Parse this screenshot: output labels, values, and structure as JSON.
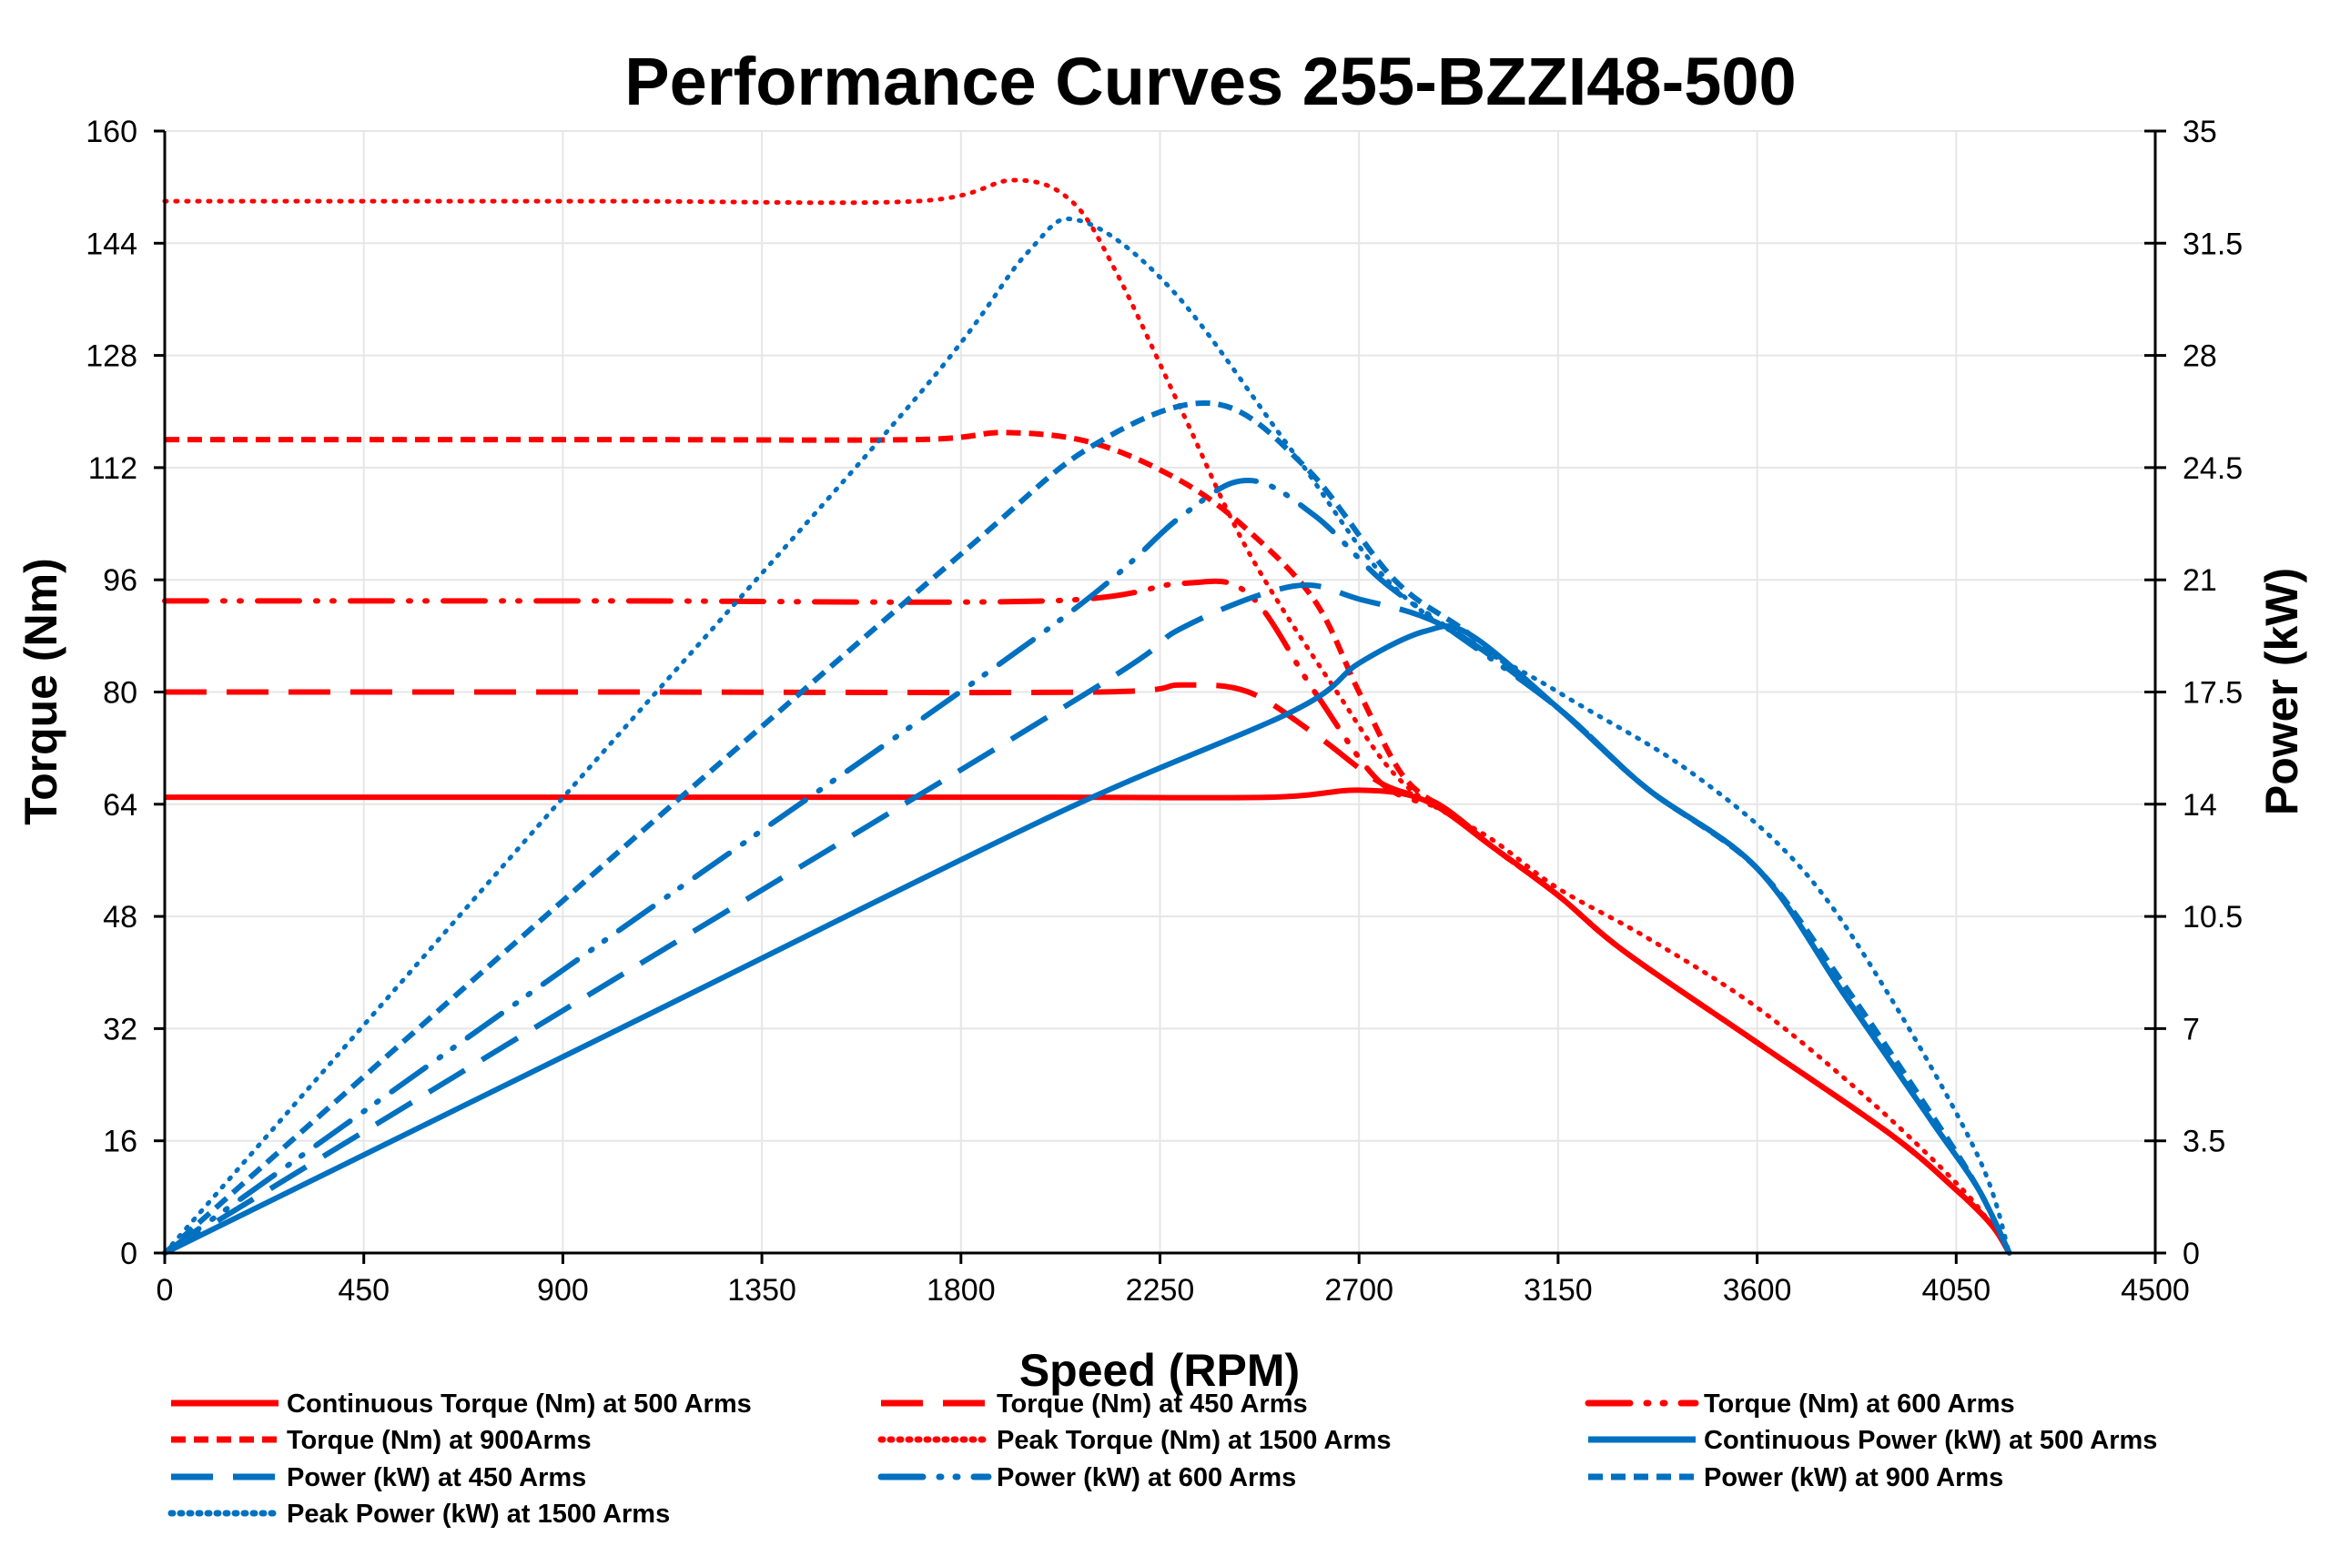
{
  "chart_data": {
    "type": "line",
    "title": "Performance Curves 255-BZZI48-500",
    "xlabel": "Speed (RPM)",
    "ylabel": "Torque (Nm)",
    "y2label": "Power (kW)",
    "xlim": [
      0,
      4500
    ],
    "ylim": [
      0,
      160
    ],
    "y2lim": [
      0,
      35
    ],
    "xticks": [
      "0",
      "450",
      "900",
      "1350",
      "1800",
      "2250",
      "2700",
      "3150",
      "3600",
      "4050",
      "4500"
    ],
    "yticks": [
      "0",
      "16",
      "32",
      "48",
      "64",
      "80",
      "96",
      "112",
      "128",
      "144",
      "160"
    ],
    "y2ticks": [
      "0",
      "3.5",
      "7",
      "10.5",
      "14",
      "17.5",
      "21",
      "24.5",
      "28",
      "31.5",
      "35"
    ],
    "grid": true,
    "legend_position": "bottom",
    "colors": {
      "torque": "#ff0000",
      "power": "#0070c0"
    },
    "series": [
      {
        "name": "Continuous Torque (Nm) at 500 Arms",
        "axis": "left",
        "color": "#ff0000",
        "style": "solid",
        "points": [
          [
            0,
            65
          ],
          [
            1000,
            65
          ],
          [
            2000,
            65
          ],
          [
            2500,
            65
          ],
          [
            2700,
            66
          ],
          [
            2850,
            64.5
          ],
          [
            3000,
            58
          ],
          [
            3150,
            51
          ],
          [
            3300,
            43
          ],
          [
            3600,
            30
          ],
          [
            3900,
            17
          ],
          [
            4050,
            9
          ],
          [
            4130,
            4
          ],
          [
            4170,
            0
          ]
        ]
      },
      {
        "name": "Torque (Nm) at 450 Arms",
        "axis": "left",
        "color": "#ff0000",
        "style": "longdash",
        "points": [
          [
            0,
            80
          ],
          [
            1000,
            80
          ],
          [
            2100,
            80
          ],
          [
            2300,
            81
          ],
          [
            2450,
            80
          ],
          [
            2600,
            74
          ],
          [
            2750,
            67
          ],
          [
            2880,
            64
          ],
          [
            3000,
            58
          ],
          [
            3150,
            51
          ],
          [
            3300,
            43
          ],
          [
            3600,
            30
          ],
          [
            3900,
            17
          ],
          [
            4050,
            9
          ],
          [
            4130,
            4
          ],
          [
            4170,
            0
          ]
        ]
      },
      {
        "name": "Torque (Nm) at 600 Arms",
        "axis": "left",
        "color": "#ff0000",
        "style": "dashdotdot",
        "points": [
          [
            0,
            93
          ],
          [
            1000,
            93
          ],
          [
            2000,
            93
          ],
          [
            2300,
            95.5
          ],
          [
            2450,
            94
          ],
          [
            2600,
            80
          ],
          [
            2750,
            67
          ],
          [
            2900,
            63
          ],
          [
            3000,
            58
          ],
          [
            3150,
            51
          ],
          [
            3300,
            43
          ],
          [
            3600,
            30
          ],
          [
            3900,
            17
          ],
          [
            4050,
            9
          ],
          [
            4130,
            4
          ],
          [
            4170,
            0
          ]
        ]
      },
      {
        "name": "Torque (Nm) at 900Arms",
        "axis": "left",
        "color": "#ff0000",
        "style": "shortdash",
        "points": [
          [
            0,
            116
          ],
          [
            1000,
            116
          ],
          [
            1700,
            116
          ],
          [
            1900,
            117
          ],
          [
            2100,
            115.5
          ],
          [
            2300,
            110
          ],
          [
            2450,
            103
          ],
          [
            2600,
            93
          ],
          [
            2700,
            80
          ],
          [
            2800,
            68
          ],
          [
            2900,
            63
          ],
          [
            3000,
            58
          ],
          [
            3150,
            51
          ],
          [
            3300,
            43
          ],
          [
            3600,
            30
          ],
          [
            3900,
            17
          ],
          [
            4050,
            9
          ],
          [
            4130,
            4
          ],
          [
            4170,
            0
          ]
        ]
      },
      {
        "name": "Peak Torque (Nm) at 1500  Arms",
        "axis": "left",
        "color": "#ff0000",
        "style": "dotted",
        "points": [
          [
            0,
            150
          ],
          [
            1000,
            150
          ],
          [
            1700,
            150
          ],
          [
            1920,
            153
          ],
          [
            2050,
            150
          ],
          [
            2150,
            140
          ],
          [
            2300,
            120
          ],
          [
            2450,
            100
          ],
          [
            2650,
            80
          ],
          [
            2800,
            67
          ],
          [
            3000,
            59
          ],
          [
            3150,
            52
          ],
          [
            3350,
            45
          ],
          [
            3600,
            35
          ],
          [
            3850,
            22
          ],
          [
            4050,
            10
          ],
          [
            4130,
            4
          ],
          [
            4170,
            0
          ]
        ]
      },
      {
        "name": "Continuous Power (kW) at 500 Arms",
        "axis": "right",
        "color": "#0070c0",
        "style": "solid",
        "points": [
          [
            0,
            0
          ],
          [
            1000,
            6.8
          ],
          [
            2000,
            13.6
          ],
          [
            2550,
            16.9
          ],
          [
            2700,
            18.4
          ],
          [
            2850,
            19.4
          ],
          [
            2950,
            19.3
          ],
          [
            3150,
            17
          ],
          [
            3350,
            14.5
          ],
          [
            3600,
            12
          ],
          [
            3800,
            8
          ],
          [
            4000,
            4
          ],
          [
            4100,
            2
          ],
          [
            4170,
            0
          ]
        ]
      },
      {
        "name": "Power (kW) at 450 Arms",
        "axis": "right",
        "color": "#0070c0",
        "style": "longdash",
        "points": [
          [
            0,
            0
          ],
          [
            1000,
            8.4
          ],
          [
            2100,
            17.6
          ],
          [
            2300,
            19.5
          ],
          [
            2550,
            20.8
          ],
          [
            2700,
            20.4
          ],
          [
            2900,
            19.5
          ],
          [
            3150,
            17
          ],
          [
            3350,
            14.5
          ],
          [
            3600,
            12
          ],
          [
            3800,
            8
          ],
          [
            4000,
            4
          ],
          [
            4100,
            2
          ],
          [
            4170,
            0
          ]
        ]
      },
      {
        "name": "Power (kW) at 600 Arms",
        "axis": "right",
        "color": "#0070c0",
        "style": "dashdotdot",
        "points": [
          [
            0,
            0
          ],
          [
            1000,
            9.8
          ],
          [
            2000,
            19.5
          ],
          [
            2300,
            23
          ],
          [
            2450,
            24.1
          ],
          [
            2600,
            23
          ],
          [
            2750,
            21
          ],
          [
            2900,
            19.5
          ],
          [
            3150,
            17
          ],
          [
            3350,
            14.5
          ],
          [
            3600,
            12
          ],
          [
            3800,
            8
          ],
          [
            4000,
            4
          ],
          [
            4100,
            2
          ],
          [
            4170,
            0
          ]
        ]
      },
      {
        "name": "Power (kW) at 900 Arms",
        "axis": "right",
        "color": "#0070c0",
        "style": "shortdash",
        "points": [
          [
            0,
            0
          ],
          [
            1000,
            12.2
          ],
          [
            1800,
            21.8
          ],
          [
            2100,
            25.2
          ],
          [
            2370,
            26.5
          ],
          [
            2580,
            24.5
          ],
          [
            2780,
            21
          ],
          [
            2950,
            19.3
          ],
          [
            3150,
            17
          ],
          [
            3350,
            14.5
          ],
          [
            3600,
            12
          ],
          [
            3800,
            8.3
          ],
          [
            4000,
            4.2
          ],
          [
            4100,
            2
          ],
          [
            4170,
            0
          ]
        ]
      },
      {
        "name": "Peak Power (kW) at 1500 Arms",
        "axis": "right",
        "color": "#0070c0",
        "style": "dotted",
        "points": [
          [
            0,
            0
          ],
          [
            900,
            14.2
          ],
          [
            1700,
            26.7
          ],
          [
            1950,
            31.2
          ],
          [
            2070,
            32.2
          ],
          [
            2280,
            30
          ],
          [
            2550,
            25
          ],
          [
            2800,
            20.5
          ],
          [
            3150,
            17.5
          ],
          [
            3450,
            15
          ],
          [
            3700,
            12
          ],
          [
            3900,
            8
          ],
          [
            4100,
            3
          ],
          [
            4170,
            0
          ]
        ]
      }
    ]
  }
}
